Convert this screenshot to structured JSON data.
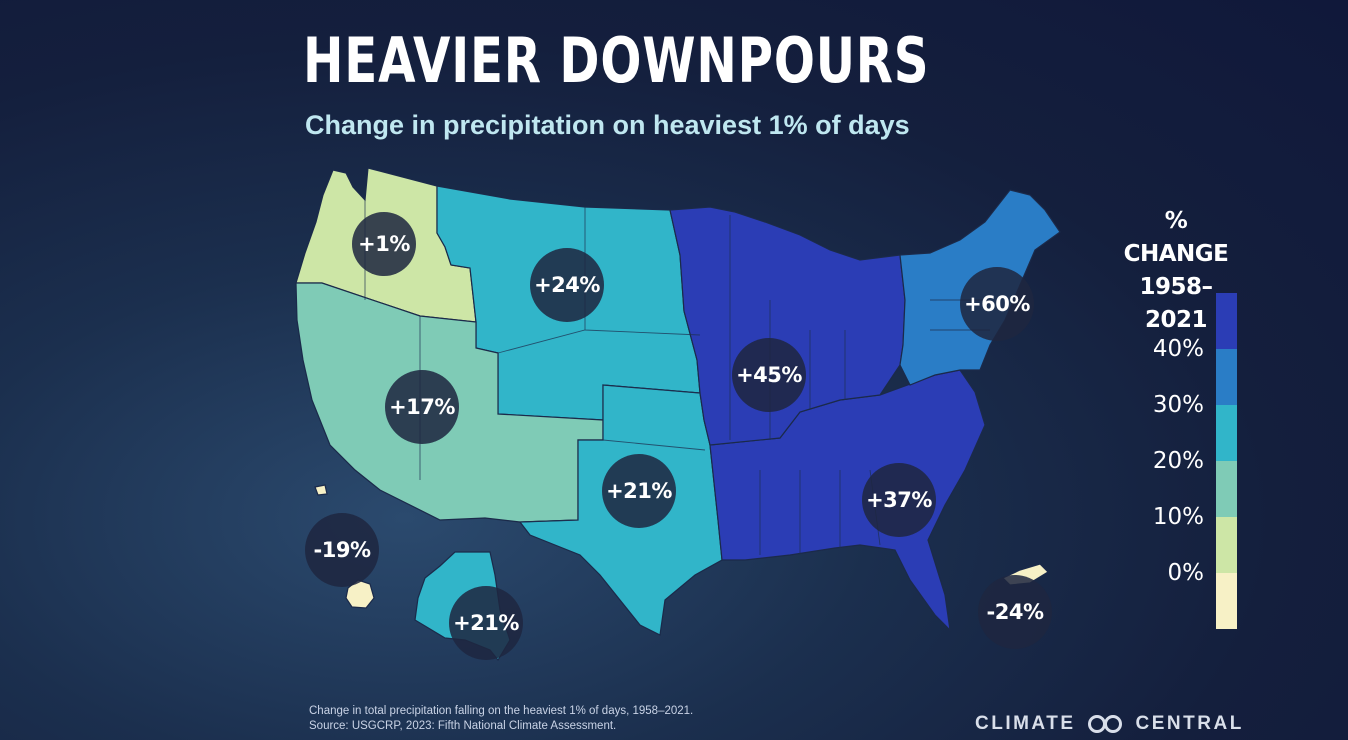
{
  "title": "HEAVIER DOWNPOURS",
  "subtitle": "Change in precipitation on heaviest 1% of days",
  "legend": {
    "title_line1": "% CHANGE",
    "title_line2": "1958–2021",
    "ticks": [
      "40%",
      "30%",
      "20%",
      "10%",
      "0%"
    ],
    "colors": [
      "#2b3db5",
      "#2a7dc6",
      "#31b5c9",
      "#7fcbb6",
      "#cde6a6",
      "#f7f1c6"
    ]
  },
  "regions": [
    {
      "name": "Northwest",
      "value": "+1%",
      "color": "#cde6a6"
    },
    {
      "name": "Northern Great Plains",
      "value": "+24%",
      "color": "#31b5c9"
    },
    {
      "name": "Southwest",
      "value": "+17%",
      "color": "#7fcbb6"
    },
    {
      "name": "Southern Great Plains",
      "value": "+21%",
      "color": "#31b5c9"
    },
    {
      "name": "Midwest",
      "value": "+45%",
      "color": "#2b3db5"
    },
    {
      "name": "Northeast",
      "value": "+60%",
      "color": "#2b3db5"
    },
    {
      "name": "Southeast",
      "value": "+37%",
      "color": "#2a7dc6"
    },
    {
      "name": "Hawaii",
      "value": "-19%",
      "color": "#f7f1c6"
    },
    {
      "name": "Alaska",
      "value": "+21%",
      "color": "#31b5c9"
    },
    {
      "name": "Puerto Rico",
      "value": "-24%",
      "color": "#f7f1c6"
    }
  ],
  "source": {
    "line1": "Change in total precipitation falling on the heaviest 1% of days, 1958–2021.",
    "line2": "Source: USGCRP, 2023: Fifth National Climate Assessment."
  },
  "brand": {
    "left": "CLIMATE",
    "right": "CENTRAL"
  }
}
